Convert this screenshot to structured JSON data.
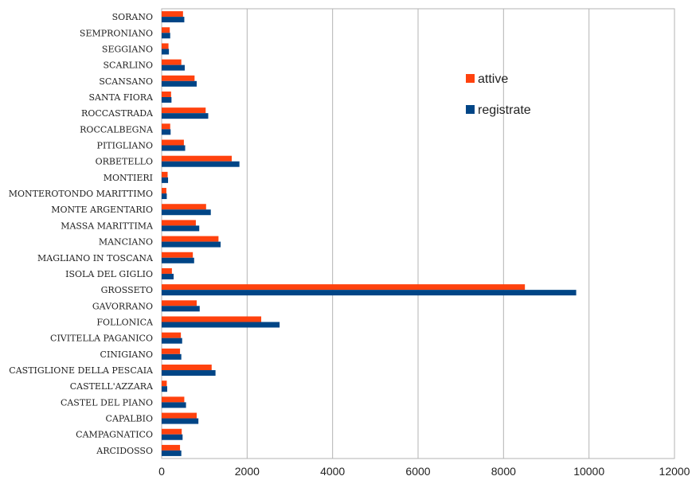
{
  "chart_data": {
    "type": "bar",
    "orientation": "horizontal",
    "title": "",
    "xlabel": "",
    "ylabel": "",
    "xlim": [
      0,
      12000
    ],
    "xticks": [
      0,
      2000,
      4000,
      6000,
      8000,
      10000,
      12000
    ],
    "grid": "vertical",
    "legend_position": "top-right",
    "colors": {
      "attive": "#ff420e",
      "registrate": "#004586"
    },
    "categories": [
      "SORANO",
      "SEMPRONIANO",
      "SEGGIANO",
      "SCARLINO",
      "SCANSANO",
      "SANTA FIORA",
      "ROCCASTRADA",
      "ROCCALBEGNA",
      "PITIGLIANO",
      "ORBETELLO",
      "MONTIERI",
      "MONTEROTONDO MARITTIMO",
      "MONTE ARGENTARIO",
      "MASSA MARITTIMA",
      "MANCIANO",
      "MAGLIANO IN TOSCANA",
      "ISOLA DEL GIGLIO",
      "GROSSETO",
      "GAVORRANO",
      "FOLLONICA",
      "CIVITELLA PAGANICO",
      "CINIGIANO",
      "CASTIGLIONE DELLA PESCAIA",
      "CASTELL'AZZARA",
      "CASTEL DEL PIANO",
      "CAPALBIO",
      "CAMPAGNATICO",
      "ARCIDOSSO"
    ],
    "series": [
      {
        "name": "attive",
        "values": [
          500,
          190,
          160,
          460,
          770,
          220,
          1030,
          200,
          520,
          1640,
          140,
          110,
          1040,
          800,
          1330,
          730,
          240,
          8500,
          820,
          2330,
          450,
          430,
          1170,
          120,
          530,
          820,
          470,
          430
        ]
      },
      {
        "name": "registrate",
        "values": [
          530,
          200,
          170,
          540,
          820,
          230,
          1090,
          210,
          550,
          1820,
          150,
          120,
          1150,
          880,
          1380,
          760,
          280,
          9700,
          890,
          2760,
          480,
          460,
          1260,
          130,
          570,
          860,
          490,
          460
        ]
      }
    ]
  }
}
